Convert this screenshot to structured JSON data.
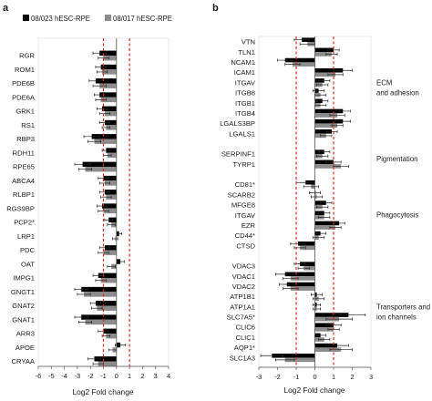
{
  "colors": {
    "series1": "#000000",
    "series2": "#8c8c8c",
    "refline": "#d62d20",
    "axis": "#555555"
  },
  "legend": [
    {
      "name": "08/023 hESC-RPE",
      "color": "#000000"
    },
    {
      "name": "08/017 hESC-RPE",
      "color": "#8c8c8c"
    }
  ],
  "chart_data": [
    {
      "type": "bar",
      "orientation": "horizontal",
      "panel": "a",
      "xlabel": "Log2 Fold change",
      "xlim": [
        -6,
        4
      ],
      "xticks": [
        -6,
        -5,
        -4,
        -3,
        -2,
        -1,
        0,
        1,
        2,
        3,
        4
      ],
      "reference_lines": [
        -1,
        1
      ],
      "categories": [
        "RGR",
        "ROM1",
        "PDE6B",
        "PDE6A",
        "GRK1",
        "RS1",
        "RBP3",
        "RDH11",
        "RPE65",
        "ABCA4",
        "RLBP1",
        "RGS9BP",
        "PCP2",
        "LRP1",
        "PDC",
        "OAT",
        "IMPG1",
        "GNGT1",
        "GNAT2",
        "GNAT1",
        "ARR3",
        "APOE",
        "CRYAA"
      ],
      "asterisks": [
        "PCP2"
      ],
      "series": [
        {
          "name": "08/023 hESC-RPE",
          "values": [
            -1.3,
            -1.2,
            -1.6,
            -1.3,
            -1.1,
            -0.9,
            -1.9,
            -0.8,
            -2.6,
            -1.0,
            -0.9,
            -1.1,
            -0.6,
            0.2,
            -0.9,
            0.3,
            -1.4,
            -2.7,
            -1.6,
            -2.7,
            -1.0,
            0.3,
            -1.7
          ],
          "errors": [
            0.5,
            0.4,
            0.5,
            0.4,
            0.4,
            0.4,
            0.6,
            0.3,
            0.6,
            0.4,
            0.4,
            0.4,
            0.3,
            0.2,
            0.4,
            0.3,
            0.4,
            0.5,
            0.4,
            0.5,
            0.4,
            0.4,
            0.5
          ]
        },
        {
          "name": "08/017 hESC-RPE",
          "values": [
            -1.0,
            -1.1,
            -1.3,
            -1.2,
            -0.9,
            -0.8,
            -1.7,
            -0.7,
            -2.4,
            -0.9,
            -0.8,
            -1.0,
            -0.4,
            -0.1,
            -1.0,
            -0.4,
            -1.2,
            -2.5,
            -1.5,
            -2.4,
            -0.8,
            -0.3,
            -1.4
          ],
          "errors": [
            0.4,
            0.4,
            0.5,
            0.4,
            0.4,
            0.3,
            0.5,
            0.3,
            0.5,
            0.4,
            0.4,
            0.4,
            0.3,
            0.2,
            0.4,
            0.3,
            0.4,
            0.5,
            0.4,
            0.5,
            0.3,
            0.3,
            0.4
          ]
        }
      ]
    },
    {
      "type": "bar",
      "orientation": "horizontal",
      "panel": "b",
      "xlabel": "Log2 Fold change",
      "xlim": [
        -3,
        3
      ],
      "xticks": [
        -3,
        -2,
        -1,
        0,
        1,
        2,
        3
      ],
      "reference_lines": [
        -1,
        1
      ],
      "categories": [
        "VTN",
        "TLN1",
        "NCAM1",
        "ICAM1",
        "ITGAV",
        "ITGB8",
        "ITGB1",
        "ITGB4",
        "LGALS3BP",
        "LGALS1",
        "",
        "SERPINF1",
        "TYRP1",
        "",
        "CD81",
        "SCARB2",
        "MFGE8",
        "ITGAV",
        "EZR",
        "CD44",
        "CTSD",
        "",
        "VDAC3",
        "VDAC1",
        "VDAC2",
        "ATP1B1",
        "ATP1A1",
        "SLC7A5",
        "CLIC6",
        "CLIC1",
        "AQP1",
        "SLC1A3"
      ],
      "asterisks": [
        "CD81",
        "CD44",
        "SLC7A5",
        "AQP1"
      ],
      "groups": [
        {
          "label": "ECM and adhesion",
          "from": "VTN",
          "to": "LGALS1"
        },
        {
          "label": "Pigmentation",
          "from": "SERPINF1",
          "to": "TYRP1"
        },
        {
          "label": "Phagocytosis",
          "from": "CD81",
          "to": "CTSD"
        },
        {
          "label": "Transporters and ion channels",
          "from": "VDAC3",
          "to": "SLC1A3"
        }
      ],
      "series": [
        {
          "name": "08/023 hESC-RPE",
          "values": [
            -0.7,
            1.0,
            -1.6,
            1.5,
            0.5,
            0.2,
            0.4,
            1.5,
            1.5,
            0.9,
            null,
            0.5,
            1.0,
            null,
            -0.5,
            0.0,
            0.6,
            0.5,
            1.3,
            0.3,
            -0.9,
            null,
            -0.8,
            -1.6,
            -1.5,
            0.1,
            0.1,
            1.8,
            1.0,
            0.3,
            1.2,
            -2.3
          ],
          "errors": [
            0.4,
            0.3,
            0.4,
            0.5,
            0.3,
            0.3,
            0.3,
            0.4,
            0.4,
            0.3,
            null,
            0.3,
            0.4,
            null,
            0.5,
            0.3,
            0.3,
            0.3,
            0.3,
            0.3,
            0.4,
            null,
            0.3,
            0.5,
            0.4,
            0.3,
            0.2,
            0.9,
            0.4,
            0.3,
            0.6,
            0.6
          ]
        },
        {
          "name": "08/017 hESC-RPE",
          "values": [
            -0.4,
            0.9,
            -1.2,
            1.1,
            0.4,
            0.3,
            0.3,
            1.2,
            1.2,
            0.6,
            null,
            0.4,
            1.4,
            null,
            -0.2,
            0.1,
            0.4,
            0.5,
            1.1,
            0.2,
            -0.8,
            null,
            -0.6,
            -1.3,
            -1.3,
            0.2,
            0.1,
            1.3,
            1.0,
            0.5,
            1.4,
            -1.6
          ],
          "errors": [
            0.4,
            0.3,
            0.4,
            0.4,
            0.3,
            0.3,
            0.3,
            0.4,
            0.3,
            0.3,
            null,
            0.3,
            0.4,
            null,
            0.4,
            0.3,
            0.3,
            0.3,
            0.3,
            0.3,
            0.3,
            null,
            0.3,
            0.4,
            0.4,
            0.3,
            0.2,
            0.7,
            0.3,
            0.3,
            0.6,
            0.5
          ]
        }
      ]
    }
  ]
}
